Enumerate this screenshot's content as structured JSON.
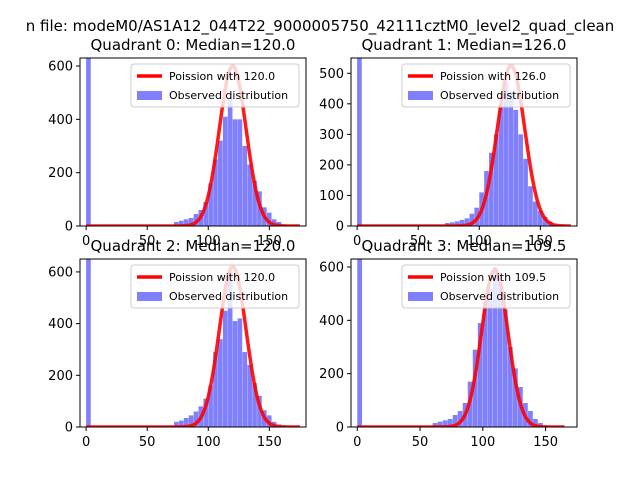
{
  "figure": {
    "suptitle": "n file: modeM0/AS1A12_044T22_9000005750_42111cztM0_level2_quad_clean"
  },
  "colors": {
    "fit_line": "#ff0000",
    "hist_fill": "#8080ff"
  },
  "chart_data": [
    {
      "type": "bar",
      "title": "Quadrant 0: Median=120.0",
      "xlabel": "",
      "ylabel": "",
      "xlim": [
        -5,
        180
      ],
      "ylim": [
        0,
        630
      ],
      "xticks": [
        0,
        50,
        100,
        150
      ],
      "yticks": [
        0,
        200,
        400,
        600
      ],
      "legend": {
        "position": "top-right"
      },
      "series": [
        {
          "name": "Observed distribution",
          "kind": "histogram",
          "bin_width": 3.8,
          "bins": [
            0,
            72,
            76,
            80,
            84,
            88,
            92,
            96,
            100,
            104,
            108,
            112,
            116,
            120,
            124,
            128,
            132,
            136,
            140,
            144,
            148,
            152,
            156,
            160
          ],
          "counts": [
            640,
            15,
            20,
            25,
            30,
            45,
            60,
            90,
            160,
            250,
            320,
            410,
            480,
            400,
            400,
            300,
            230,
            170,
            130,
            70,
            50,
            25,
            15,
            5
          ]
        },
        {
          "name": "Poission with 120.0",
          "kind": "line",
          "mean": 120.0,
          "peak": 600,
          "x_range": [
            0,
            175
          ]
        }
      ]
    },
    {
      "type": "bar",
      "title": "Quadrant 1: Median=126.0",
      "xlabel": "",
      "ylabel": "",
      "xlim": [
        -5,
        180
      ],
      "ylim": [
        0,
        550
      ],
      "xticks": [
        0,
        50,
        100,
        150
      ],
      "yticks": [
        0,
        100,
        200,
        300,
        400,
        500
      ],
      "legend": {
        "position": "top-right"
      },
      "series": [
        {
          "name": "Observed distribution",
          "kind": "histogram",
          "bin_width": 3.8,
          "bins": [
            0,
            72,
            76,
            80,
            84,
            88,
            92,
            96,
            100,
            104,
            108,
            112,
            116,
            120,
            124,
            128,
            132,
            136,
            140,
            144,
            148,
            152,
            156,
            160
          ],
          "counts": [
            550,
            10,
            12,
            15,
            20,
            25,
            40,
            60,
            110,
            180,
            240,
            300,
            390,
            470,
            440,
            380,
            300,
            220,
            130,
            80,
            50,
            30,
            15,
            5
          ]
        },
        {
          "name": "Poission with 126.0",
          "kind": "line",
          "mean": 126.0,
          "peak": 525,
          "x_range": [
            0,
            175
          ]
        }
      ]
    },
    {
      "type": "bar",
      "title": "Quadrant 2: Median=120.0",
      "xlabel": "",
      "ylabel": "",
      "xlim": [
        -5,
        180
      ],
      "ylim": [
        0,
        650
      ],
      "xticks": [
        0,
        50,
        100,
        150
      ],
      "yticks": [
        0,
        200,
        400,
        600
      ],
      "legend": {
        "position": "top-right"
      },
      "series": [
        {
          "name": "Observed distribution",
          "kind": "histogram",
          "bin_width": 3.8,
          "bins": [
            0,
            72,
            76,
            80,
            84,
            88,
            92,
            96,
            100,
            104,
            108,
            112,
            116,
            120,
            124,
            128,
            132,
            136,
            140,
            144,
            148,
            152,
            156,
            160
          ],
          "counts": [
            650,
            20,
            25,
            35,
            45,
            60,
            80,
            110,
            160,
            290,
            340,
            450,
            600,
            410,
            420,
            290,
            240,
            170,
            120,
            65,
            45,
            20,
            10,
            5
          ]
        },
        {
          "name": "Poission with 120.0",
          "kind": "line",
          "mean": 120.0,
          "peak": 620,
          "x_range": [
            0,
            175
          ]
        }
      ]
    },
    {
      "type": "bar",
      "title": "Quadrant 3: Median=109.5",
      "xlabel": "",
      "ylabel": "",
      "xlim": [
        -5,
        175
      ],
      "ylim": [
        0,
        630
      ],
      "xticks": [
        0,
        50,
        100,
        150
      ],
      "yticks": [
        0,
        200,
        400,
        600
      ],
      "legend": {
        "position": "top-right"
      },
      "series": [
        {
          "name": "Observed distribution",
          "kind": "histogram",
          "bin_width": 3.8,
          "bins": [
            0,
            60,
            64,
            68,
            72,
            76,
            80,
            84,
            88,
            92,
            96,
            100,
            104,
            108,
            112,
            116,
            120,
            124,
            128,
            132,
            136,
            140,
            144,
            148
          ],
          "counts": [
            630,
            15,
            20,
            25,
            30,
            45,
            60,
            90,
            170,
            290,
            390,
            470,
            520,
            600,
            540,
            440,
            300,
            220,
            150,
            90,
            60,
            30,
            15,
            5
          ]
        },
        {
          "name": "Poission with 109.5",
          "kind": "line",
          "mean": 109.5,
          "peak": 590,
          "x_range": [
            0,
            165
          ]
        }
      ]
    }
  ]
}
